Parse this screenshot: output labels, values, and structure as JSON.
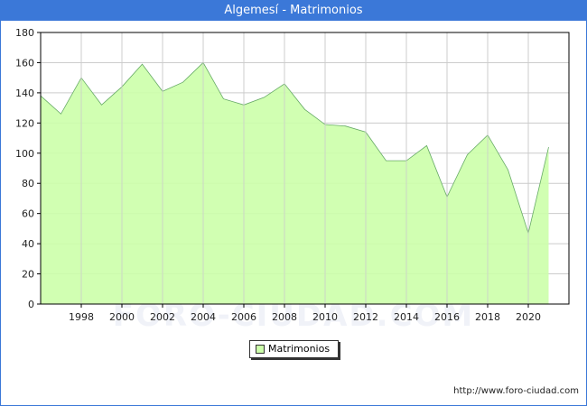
{
  "title": "Algemesí - Matrimonios",
  "watermark": "FORO-CIUDAD.COM",
  "source": "http://www.foro-ciudad.com",
  "colors": {
    "title_bar": "#3b78d8",
    "area_fill": "#ccffaa",
    "area_line": "#66aa66",
    "grid": "#cccccc"
  },
  "chart_data": {
    "type": "area",
    "title": "Algemesí - Matrimonios",
    "xlabel": "",
    "ylabel": "",
    "xlim": [
      1996,
      2022
    ],
    "ylim": [
      0,
      180
    ],
    "x_ticks": [
      1998,
      2000,
      2002,
      2004,
      2006,
      2008,
      2010,
      2012,
      2014,
      2016,
      2018,
      2020
    ],
    "y_ticks": [
      0,
      20,
      40,
      60,
      80,
      100,
      120,
      140,
      160,
      180
    ],
    "grid": true,
    "legend_position": "bottom-center",
    "series": [
      {
        "name": "Matrimonios",
        "x": [
          1996,
          1997,
          1998,
          1999,
          2000,
          2001,
          2002,
          2003,
          2004,
          2005,
          2006,
          2007,
          2008,
          2009,
          2010,
          2011,
          2012,
          2013,
          2014,
          2015,
          2016,
          2017,
          2018,
          2019,
          2020,
          2021
        ],
        "values": [
          138,
          126,
          150,
          132,
          144,
          159,
          141,
          147,
          160,
          136,
          132,
          137,
          146,
          129,
          119,
          118,
          114,
          95,
          95,
          105,
          71,
          99,
          112,
          89,
          47,
          104
        ]
      }
    ]
  }
}
